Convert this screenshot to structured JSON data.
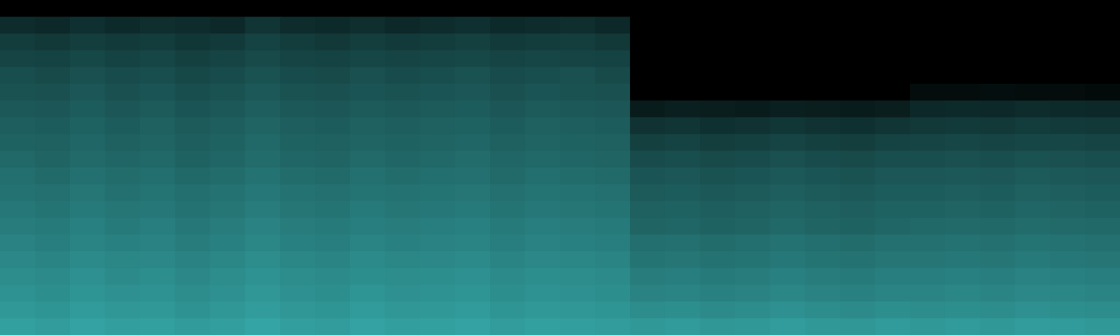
{
  "chart_data": {
    "type": "heatmap",
    "xlim": [
      0,
      32
    ],
    "ylim": [
      0,
      20
    ],
    "zlim": [
      0,
      100
    ],
    "tick_labels": false,
    "color": "#40c8c8",
    "cells": [
      [
        0,
        0,
        0,
        0,
        0,
        0,
        0,
        0,
        0,
        0,
        0,
        0,
        0,
        0,
        0,
        0,
        0,
        0,
        0,
        0,
        0,
        0,
        0,
        0,
        0,
        0,
        0,
        0,
        0,
        0,
        0,
        0
      ],
      [
        22,
        20,
        24,
        21,
        23,
        22,
        20,
        26,
        22,
        21,
        23,
        20,
        22,
        24,
        21,
        22,
        23,
        20,
        0,
        0,
        0,
        0,
        0,
        0,
        0,
        0,
        0,
        0,
        0,
        0,
        0,
        0
      ],
      [
        30,
        28,
        31,
        29,
        30,
        27,
        29,
        33,
        30,
        28,
        31,
        29,
        30,
        32,
        29,
        30,
        31,
        28,
        0,
        0,
        0,
        0,
        0,
        0,
        0,
        0,
        0,
        0,
        0,
        0,
        0,
        0
      ],
      [
        34,
        33,
        36,
        33,
        35,
        32,
        34,
        37,
        34,
        33,
        35,
        34,
        35,
        36,
        34,
        35,
        34,
        33,
        0,
        0,
        0,
        0,
        0,
        0,
        0,
        0,
        0,
        0,
        0,
        0,
        0,
        0
      ],
      [
        39,
        37,
        40,
        38,
        39,
        36,
        38,
        41,
        38,
        37,
        40,
        38,
        39,
        41,
        38,
        39,
        40,
        37,
        0,
        0,
        0,
        0,
        0,
        0,
        0,
        0,
        0,
        0,
        0,
        0,
        0,
        0
      ],
      [
        41,
        40,
        43,
        40,
        42,
        39,
        41,
        44,
        41,
        40,
        42,
        41,
        42,
        43,
        40,
        42,
        41,
        40,
        0,
        0,
        0,
        0,
        0,
        0,
        0,
        0,
        6,
        6,
        7,
        6,
        6,
        5
      ],
      [
        44,
        43,
        46,
        43,
        45,
        42,
        44,
        47,
        44,
        43,
        45,
        44,
        45,
        46,
        43,
        45,
        44,
        43,
        14,
        16,
        15,
        14,
        16,
        15,
        14,
        15,
        20,
        21,
        20,
        22,
        21,
        20
      ],
      [
        47,
        46,
        49,
        46,
        48,
        45,
        47,
        50,
        47,
        46,
        48,
        47,
        48,
        49,
        46,
        48,
        47,
        46,
        25,
        26,
        24,
        25,
        27,
        25,
        24,
        26,
        28,
        29,
        28,
        30,
        29,
        28
      ],
      [
        49,
        48,
        51,
        48,
        50,
        47,
        49,
        52,
        49,
        48,
        50,
        49,
        50,
        51,
        48,
        50,
        49,
        48,
        32,
        33,
        31,
        32,
        34,
        32,
        31,
        33,
        34,
        35,
        34,
        35,
        35,
        34
      ],
      [
        52,
        50,
        53,
        51,
        52,
        49,
        51,
        54,
        51,
        50,
        53,
        51,
        52,
        54,
        51,
        52,
        51,
        50,
        38,
        39,
        37,
        38,
        40,
        38,
        37,
        39,
        39,
        40,
        39,
        41,
        40,
        39
      ],
      [
        55,
        53,
        56,
        54,
        55,
        52,
        54,
        57,
        54,
        53,
        56,
        54,
        55,
        56,
        53,
        55,
        54,
        53,
        42,
        43,
        41,
        42,
        44,
        42,
        41,
        43,
        43,
        44,
        43,
        45,
        44,
        43
      ],
      [
        57,
        56,
        59,
        56,
        58,
        55,
        57,
        60,
        57,
        56,
        58,
        57,
        58,
        59,
        56,
        58,
        57,
        56,
        45,
        46,
        44,
        45,
        47,
        45,
        44,
        46,
        46,
        47,
        46,
        48,
        47,
        46
      ],
      [
        60,
        58,
        61,
        59,
        60,
        57,
        59,
        62,
        59,
        58,
        61,
        59,
        60,
        61,
        58,
        60,
        59,
        58,
        48,
        49,
        47,
        48,
        50,
        48,
        47,
        49,
        49,
        50,
        49,
        51,
        50,
        49
      ],
      [
        62,
        61,
        64,
        61,
        63,
        60,
        62,
        65,
        62,
        61,
        63,
        62,
        63,
        64,
        61,
        63,
        62,
        61,
        50,
        51,
        49,
        50,
        52,
        50,
        49,
        51,
        52,
        53,
        52,
        54,
        53,
        52
      ],
      [
        65,
        63,
        66,
        64,
        65,
        62,
        64,
        67,
        64,
        63,
        66,
        64,
        65,
        66,
        63,
        65,
        64,
        63,
        55,
        56,
        54,
        55,
        57,
        55,
        54,
        56,
        56,
        57,
        56,
        58,
        57,
        56
      ],
      [
        68,
        66,
        69,
        67,
        68,
        65,
        67,
        70,
        67,
        66,
        69,
        67,
        68,
        69,
        66,
        68,
        67,
        66,
        58,
        59,
        57,
        58,
        60,
        58,
        57,
        59,
        59,
        60,
        59,
        61,
        60,
        59
      ],
      [
        70,
        69,
        72,
        69,
        71,
        68,
        70,
        73,
        70,
        69,
        71,
        70,
        71,
        72,
        69,
        71,
        70,
        69,
        62,
        63,
        61,
        62,
        64,
        62,
        61,
        63,
        63,
        64,
        63,
        65,
        64,
        63
      ],
      [
        73,
        71,
        74,
        72,
        73,
        70,
        72,
        75,
        72,
        71,
        74,
        72,
        73,
        74,
        71,
        73,
        72,
        71,
        65,
        66,
        64,
        65,
        67,
        65,
        64,
        66,
        66,
        67,
        66,
        68,
        67,
        66
      ],
      [
        76,
        74,
        77,
        75,
        76,
        73,
        75,
        78,
        75,
        74,
        77,
        75,
        76,
        77,
        74,
        76,
        75,
        74,
        70,
        71,
        69,
        70,
        72,
        70,
        69,
        71,
        70,
        71,
        70,
        72,
        71,
        70
      ],
      [
        80,
        78,
        81,
        79,
        80,
        77,
        79,
        82,
        79,
        78,
        81,
        79,
        80,
        81,
        78,
        80,
        79,
        78,
        76,
        77,
        75,
        76,
        78,
        76,
        75,
        77,
        76,
        77,
        76,
        78,
        77,
        76
      ]
    ]
  }
}
